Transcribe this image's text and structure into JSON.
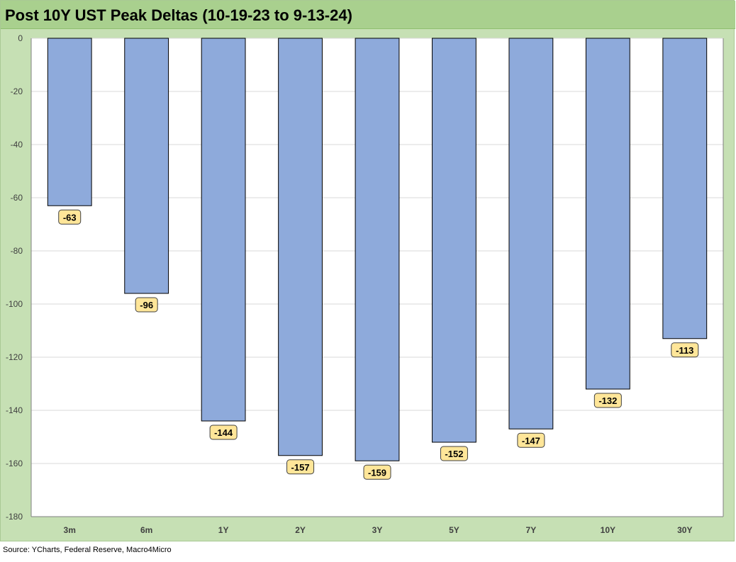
{
  "title": "Post 10Y UST Peak Deltas (10-19-23 to 9-13-24)",
  "source": "Source: YCharts, Federal Reserve, Macro4Micro",
  "colors": {
    "frame": "#c6e0b4",
    "title_bar": "#a9d08e",
    "bar_fill": "#8eaadb",
    "bar_stroke": "#000000",
    "label_fill": "#ffe699",
    "gridline": "#d9d9d9"
  },
  "chart_data": {
    "type": "bar",
    "categories": [
      "3m",
      "6m",
      "1Y",
      "2Y",
      "3Y",
      "5Y",
      "7Y",
      "10Y",
      "30Y"
    ],
    "values": [
      -63,
      -96,
      -144,
      -157,
      -159,
      -152,
      -147,
      -132,
      -113
    ],
    "data_labels": [
      "-63",
      "-96",
      "-144",
      "-157",
      "-159",
      "-152",
      "-147",
      "-132",
      "-113"
    ],
    "ylim": [
      -180,
      0
    ],
    "yticks": [
      0,
      -20,
      -40,
      -60,
      -80,
      -100,
      -120,
      -140,
      -160,
      -180
    ],
    "xlabel": "",
    "ylabel": "",
    "grid": true,
    "legend": "none"
  }
}
